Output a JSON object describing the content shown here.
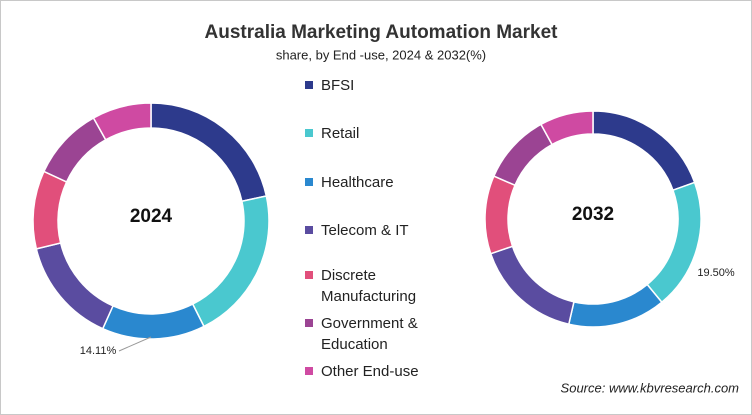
{
  "chart_data": {
    "type": "donut",
    "title": "Australia Marketing Automation Market",
    "subtitle": "share, by End -use, 2024 & 2032(%)",
    "categories": [
      "BFSI",
      "Retail",
      "Healthcare",
      "Telecom & IT",
      "Discrete Manufacturing",
      "Government & Education",
      "Other End-use"
    ],
    "colors": [
      "#2d3a8c",
      "#4ac8cf",
      "#2a88cf",
      "#5a4ca0",
      "#e14f7b",
      "#9b4493",
      "#cf4aa2"
    ],
    "series": [
      {
        "name": "2024",
        "values": [
          21.6,
          21,
          14.11,
          14.5,
          10.7,
          10,
          8.1
        ],
        "value_labels": [
          null,
          null,
          "14.11%",
          null,
          null,
          null,
          null
        ]
      },
      {
        "name": "2032",
        "values": [
          19.5,
          19.5,
          14.6,
          16.2,
          11.7,
          10.5,
          8
        ],
        "value_labels": [
          null,
          "19.50%",
          null,
          null,
          null,
          null,
          null
        ]
      }
    ],
    "source": "Source: www.kbvresearch.com"
  }
}
